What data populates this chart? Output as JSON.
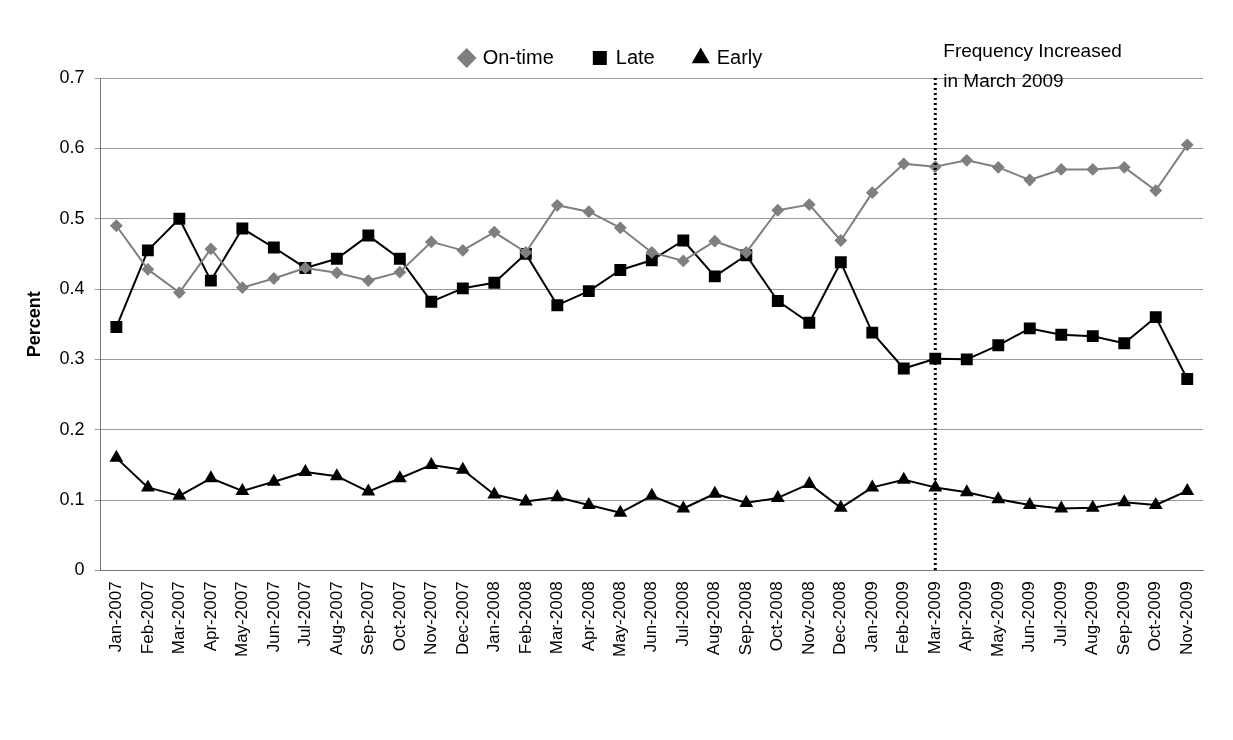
{
  "chart_data": {
    "type": "line",
    "ylabel": "Percent",
    "categories": [
      "Jan-2007",
      "Feb-2007",
      "Mar-2007",
      "Apr-2007",
      "May-2007",
      "Jun-2007",
      "Jul-2007",
      "Aug-2007",
      "Sep-2007",
      "Oct-2007",
      "Nov-2007",
      "Dec-2007",
      "Jan-2008",
      "Feb-2008",
      "Mar-2008",
      "Apr-2008",
      "May-2008",
      "Jun-2008",
      "Jul-2008",
      "Aug-2008",
      "Sep-2008",
      "Oct-2008",
      "Nov-2008",
      "Dec-2008",
      "Jan-2009",
      "Feb-2009",
      "Mar-2009",
      "Apr-2009",
      "May-2009",
      "Jun-2009",
      "Jul-2009",
      "Aug-2009",
      "Sep-2009",
      "Oct-2009",
      "Nov-2009"
    ],
    "series": [
      {
        "name": "On-time",
        "color": "#7f7f7f",
        "marker": "diamond",
        "values": [
          0.49,
          0.428,
          0.395,
          0.457,
          0.402,
          0.415,
          0.43,
          0.423,
          0.412,
          0.424,
          0.467,
          0.455,
          0.481,
          0.452,
          0.519,
          0.51,
          0.487,
          0.452,
          0.44,
          0.468,
          0.452,
          0.512,
          0.52,
          0.469,
          0.537,
          0.578,
          0.574,
          0.583,
          0.573,
          0.555,
          0.57,
          0.57,
          0.573,
          0.54,
          0.605
        ]
      },
      {
        "name": "Late",
        "color": "#000000",
        "marker": "square",
        "values": [
          0.346,
          0.455,
          0.5,
          0.412,
          0.486,
          0.459,
          0.43,
          0.443,
          0.476,
          0.443,
          0.382,
          0.401,
          0.409,
          0.45,
          0.377,
          0.397,
          0.427,
          0.441,
          0.469,
          0.418,
          0.448,
          0.383,
          0.352,
          0.438,
          0.338,
          0.287,
          0.301,
          0.3,
          0.32,
          0.344,
          0.335,
          0.333,
          0.323,
          0.36,
          0.272
        ]
      },
      {
        "name": "Early",
        "color": "#000000",
        "marker": "triangle",
        "values": [
          0.16,
          0.118,
          0.106,
          0.131,
          0.113,
          0.126,
          0.14,
          0.134,
          0.112,
          0.131,
          0.15,
          0.143,
          0.108,
          0.098,
          0.104,
          0.093,
          0.082,
          0.106,
          0.088,
          0.109,
          0.096,
          0.103,
          0.123,
          0.089,
          0.118,
          0.129,
          0.118,
          0.111,
          0.101,
          0.093,
          0.088,
          0.089,
          0.097,
          0.093,
          0.113
        ]
      }
    ],
    "ylim": [
      0,
      0.7
    ],
    "yticks": [
      0,
      0.1,
      0.2,
      0.3,
      0.4,
      0.5,
      0.6,
      0.7
    ],
    "ref_lines": [
      {
        "axis": "x",
        "value": "Mar-2009",
        "label": "Frequency Increased in March 2009",
        "color": "#000000",
        "line_style": "dotted"
      }
    ],
    "grid": "y",
    "legend": "top",
    "line_style": "solid"
  }
}
